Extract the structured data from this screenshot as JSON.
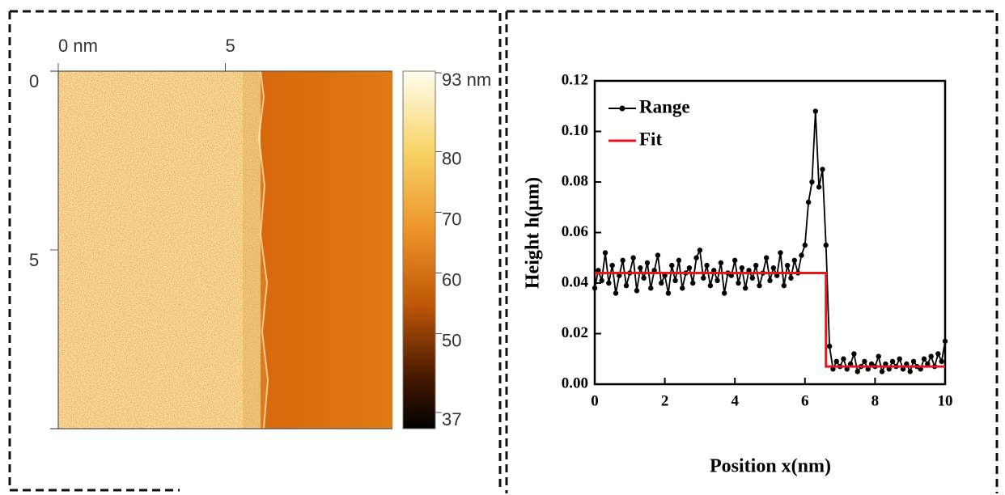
{
  "chart_data": [
    {
      "type": "image",
      "xlim": [
        0,
        10
      ],
      "ylim": [
        0,
        10
      ],
      "xticks": [
        {
          "value": 0,
          "label": "0 nm"
        },
        5
      ],
      "yticks": [
        0,
        5
      ],
      "colorbar_lim": [
        37,
        93
      ],
      "colorbar_ticks": [
        {
          "value": 93,
          "label": "93 nm"
        },
        80,
        70,
        60,
        50,
        37
      ]
    },
    {
      "type": "line",
      "xlabel": "Position x(nm)",
      "ylabel": "Height h(μm)",
      "xlim": [
        0,
        10
      ],
      "ylim": [
        0,
        0.12
      ],
      "xticks": [
        0,
        2,
        4,
        6,
        8,
        10
      ],
      "yticks": [
        {
          "value": 0,
          "label": "0.00"
        },
        {
          "value": 0.02,
          "label": "0.02"
        },
        {
          "value": 0.04,
          "label": "0.04"
        },
        {
          "value": 0.06,
          "label": "0.06"
        },
        {
          "value": 0.08,
          "label": "0.08"
        },
        {
          "value": 0.1,
          "label": "0.10"
        },
        {
          "value": 0.12,
          "label": "0.12"
        }
      ],
      "series": [
        {
          "name": "Range",
          "color": "#000000",
          "markers": true,
          "x": [
            0,
            0.1,
            0.2,
            0.3,
            0.4,
            0.5,
            0.6,
            0.7,
            0.8,
            0.9,
            1,
            1.1,
            1.2,
            1.3,
            1.4,
            1.5,
            1.6,
            1.7,
            1.8,
            1.9,
            2,
            2.1,
            2.2,
            2.3,
            2.4,
            2.5,
            2.6,
            2.7,
            2.8,
            2.9,
            3,
            3.1,
            3.2,
            3.3,
            3.4,
            3.5,
            3.6,
            3.7,
            3.8,
            3.9,
            4,
            4.1,
            4.2,
            4.3,
            4.4,
            4.5,
            4.6,
            4.7,
            4.8,
            4.9,
            5,
            5.1,
            5.2,
            5.3,
            5.4,
            5.5,
            5.6,
            5.7,
            5.8,
            5.9,
            6,
            6.1,
            6.2,
            6.3,
            6.4,
            6.5,
            6.6,
            6.7,
            6.8,
            6.9,
            7,
            7.1,
            7.2,
            7.3,
            7.4,
            7.5,
            7.6,
            7.7,
            7.8,
            7.9,
            8,
            8.1,
            8.2,
            8.3,
            8.4,
            8.5,
            8.6,
            8.7,
            8.8,
            8.9,
            9,
            9.1,
            9.2,
            9.3,
            9.4,
            9.5,
            9.6,
            9.7,
            9.8,
            9.9,
            10
          ],
          "values": [
            0.038,
            0.045,
            0.041,
            0.052,
            0.04,
            0.047,
            0.036,
            0.043,
            0.049,
            0.039,
            0.044,
            0.05,
            0.037,
            0.046,
            0.042,
            0.048,
            0.038,
            0.045,
            0.051,
            0.04,
            0.043,
            0.036,
            0.047,
            0.041,
            0.049,
            0.038,
            0.044,
            0.046,
            0.04,
            0.05,
            0.053,
            0.042,
            0.047,
            0.039,
            0.045,
            0.041,
            0.048,
            0.036,
            0.044,
            0.043,
            0.049,
            0.04,
            0.046,
            0.038,
            0.045,
            0.042,
            0.047,
            0.039,
            0.044,
            0.05,
            0.041,
            0.046,
            0.043,
            0.052,
            0.039,
            0.047,
            0.042,
            0.049,
            0.044,
            0.051,
            0.055,
            0.072,
            0.08,
            0.108,
            0.078,
            0.085,
            0.055,
            0.015,
            0.006,
            0.009,
            0.007,
            0.01,
            0.006,
            0.008,
            0.012,
            0.005,
            0.007,
            0.009,
            0.006,
            0.008,
            0.007,
            0.011,
            0.005,
            0.008,
            0.006,
            0.009,
            0.007,
            0.01,
            0.006,
            0.008,
            0.005,
            0.009,
            0.007,
            0.006,
            0.01,
            0.008,
            0.011,
            0.007,
            0.012,
            0.009,
            0.017
          ]
        },
        {
          "name": "Fit",
          "color": "#e8141c",
          "markers": false,
          "x": [
            0,
            6.6,
            6.6,
            10
          ],
          "values": [
            0.044,
            0.044,
            0.007,
            0.007
          ]
        }
      ]
    }
  ]
}
